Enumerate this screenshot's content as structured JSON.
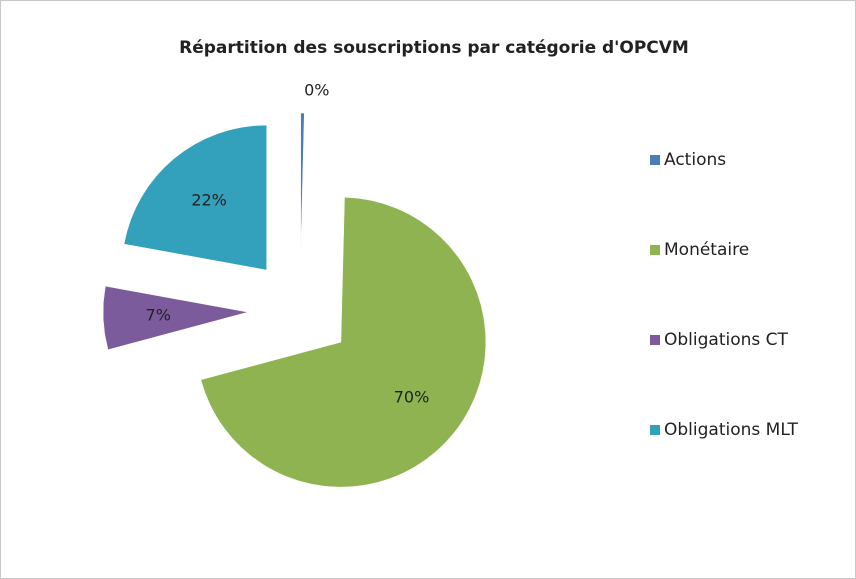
{
  "chart_data": {
    "type": "pie",
    "title": "Répartition des souscriptions par catégorie d'OPCVM",
    "categories": [
      "Actions",
      "Monétaire",
      "Obligations CT",
      "Obligations MLT"
    ],
    "values": [
      0.4,
      70,
      7,
      22
    ],
    "value_labels": [
      "0%",
      "70%",
      "7%",
      "22%"
    ],
    "colors": [
      "#4a7ebb",
      "#8fb350",
      "#7c5b9c",
      "#33a1bb"
    ],
    "legend": "right",
    "exploded": true
  }
}
